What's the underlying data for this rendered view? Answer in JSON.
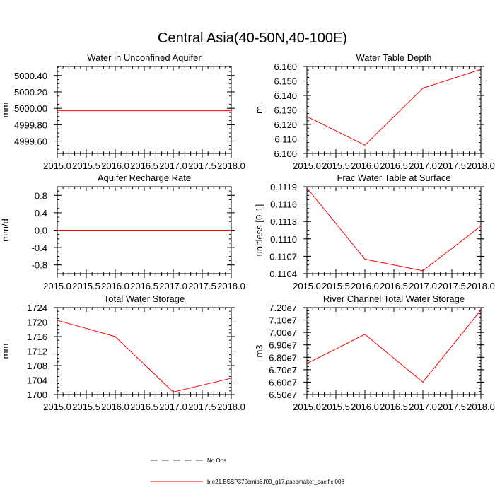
{
  "title": "Central Asia(40-50N,40-100E)",
  "legend": {
    "items": [
      {
        "label": "No Obs",
        "color": "#3c3c8c",
        "dash": true
      },
      {
        "label": "b.e21.BSSP370cmip6.f09_g17.pacemaker_pacific.008",
        "color": "#ff0000",
        "dash": false
      }
    ]
  },
  "chart_data": [
    {
      "type": "line",
      "title": "Water in Unconfined Aquifer",
      "ylabel": "mm",
      "xlim": [
        2015.0,
        2018.0
      ],
      "ylim": [
        4999.45,
        5000.51
      ],
      "xticks": [
        2015.0,
        2015.5,
        2016.0,
        2016.5,
        2017.0,
        2017.5,
        2018.0
      ],
      "xtick_labels": [
        "2015.0",
        "2015.5",
        "2016.0",
        "2016.5",
        "2017.0",
        "2017.5",
        "2018.0"
      ],
      "yticks": [
        4999.6,
        4999.8,
        5000.0,
        5000.2,
        5000.4
      ],
      "ytick_labels": [
        "4999.60",
        "4999.80",
        "5000.00",
        "5000.20",
        "5000.40"
      ],
      "x": [
        2015.0,
        2016.0,
        2017.0,
        2018.0
      ],
      "series": [
        {
          "values": [
            4999.97,
            4999.97,
            4999.97,
            4999.97
          ],
          "color": "#ff0000"
        }
      ]
    },
    {
      "type": "line",
      "title": "Water Table Depth",
      "ylabel": "m",
      "xlim": [
        2015.0,
        2018.0
      ],
      "ylim": [
        6.1,
        6.16
      ],
      "xticks": [
        2015.0,
        2015.5,
        2016.0,
        2016.5,
        2017.0,
        2017.5,
        2018.0
      ],
      "xtick_labels": [
        "2015.0",
        "2015.5",
        "2016.0",
        "2016.5",
        "2017.0",
        "2017.5",
        "2018.0"
      ],
      "yticks": [
        6.1,
        6.11,
        6.12,
        6.13,
        6.14,
        6.15,
        6.16
      ],
      "ytick_labels": [
        "6.100",
        "6.110",
        "6.120",
        "6.130",
        "6.140",
        "6.150",
        "6.160"
      ],
      "x": [
        2015.0,
        2016.0,
        2017.0,
        2018.0
      ],
      "series": [
        {
          "values": [
            6.1255,
            6.1057,
            6.145,
            6.158
          ],
          "color": "#ff0000"
        }
      ]
    },
    {
      "type": "line",
      "title": "Aquifer Recharge Rate",
      "ylabel": "mm/d",
      "xlim": [
        2015.0,
        2018.0
      ],
      "ylim": [
        -1.0,
        1.0
      ],
      "xticks": [
        2015.0,
        2015.5,
        2016.0,
        2016.5,
        2017.0,
        2017.5,
        2018.0
      ],
      "xtick_labels": [
        "2015.0",
        "2015.5",
        "2016.0",
        "2016.5",
        "2017.0",
        "2017.5",
        "2018.0"
      ],
      "yticks": [
        -0.8,
        -0.4,
        0.0,
        0.4,
        0.8
      ],
      "ytick_labels": [
        "-0.8",
        "-0.4",
        "0.0",
        "0.4",
        "0.8"
      ],
      "x": [
        2015.0,
        2016.0,
        2017.0,
        2018.0
      ],
      "series": [
        {
          "values": [
            0.0,
            0.0,
            0.0,
            0.0
          ],
          "color": "#ff0000"
        }
      ]
    },
    {
      "type": "line",
      "title": "Frac Water Table at Surface",
      "ylabel": "unitless [0-1]",
      "xlim": [
        2015.0,
        2018.0
      ],
      "ylim": [
        0.1104,
        0.1119
      ],
      "xticks": [
        2015.0,
        2015.5,
        2016.0,
        2016.5,
        2017.0,
        2017.5,
        2018.0
      ],
      "xtick_labels": [
        "2015.0",
        "2015.5",
        "2016.0",
        "2016.5",
        "2017.0",
        "2017.5",
        "2018.0"
      ],
      "yticks": [
        0.1104,
        0.1107,
        0.111,
        0.1113,
        0.1116,
        0.1119
      ],
      "ytick_labels": [
        "0.1104",
        "0.1107",
        "0.1110",
        "0.1113",
        "0.1116",
        "0.1119"
      ],
      "x": [
        2015.0,
        2016.0,
        2017.0,
        2018.0
      ],
      "series": [
        {
          "values": [
            0.11188,
            0.11065,
            0.11045,
            0.11122
          ],
          "color": "#ff0000"
        }
      ]
    },
    {
      "type": "line",
      "title": "Total Water Storage",
      "ylabel": "mm",
      "xlim": [
        2015.0,
        2018.0
      ],
      "ylim": [
        1700.0,
        1724.0
      ],
      "xticks": [
        2015.0,
        2015.5,
        2016.0,
        2016.5,
        2017.0,
        2017.5,
        2018.0
      ],
      "xtick_labels": [
        "2015.0",
        "2015.5",
        "2016.0",
        "2016.5",
        "2017.0",
        "2017.5",
        "2018.0"
      ],
      "yticks": [
        1700,
        1704,
        1708,
        1712,
        1716,
        1720,
        1724
      ],
      "ytick_labels": [
        "1700",
        "1704",
        "1708",
        "1712",
        "1716",
        "1720",
        "1724"
      ],
      "x": [
        2015.0,
        2016.0,
        2017.0,
        2018.0
      ],
      "series": [
        {
          "values": [
            1720.5,
            1716.0,
            1700.7,
            1704.5
          ],
          "color": "#ff0000"
        }
      ]
    },
    {
      "type": "line",
      "title": "River Channel Total Water Storage",
      "ylabel": "m3",
      "xlim": [
        2015.0,
        2018.0
      ],
      "ylim": [
        65000000,
        72000000
      ],
      "xticks": [
        2015.0,
        2015.5,
        2016.0,
        2016.5,
        2017.0,
        2017.5,
        2018.0
      ],
      "xtick_labels": [
        "2015.0",
        "2015.5",
        "2016.0",
        "2016.5",
        "2017.0",
        "2017.5",
        "2018.0"
      ],
      "yticks": [
        65000000,
        66000000,
        67000000,
        68000000,
        69000000,
        70000000,
        71000000,
        72000000
      ],
      "ytick_labels": [
        "6.50e7",
        "6.60e7",
        "6.70e7",
        "6.80e7",
        "6.90e7",
        "7.00e7",
        "7.10e7",
        "7.20e7"
      ],
      "x": [
        2015.0,
        2016.0,
        2017.0,
        2018.0
      ],
      "series": [
        {
          "values": [
            67500000,
            69850000,
            66000000,
            71800000
          ],
          "color": "#ff0000"
        }
      ]
    }
  ]
}
